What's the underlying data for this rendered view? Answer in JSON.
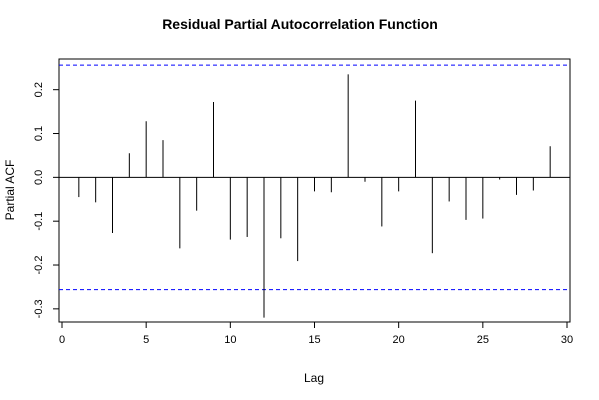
{
  "chart_data": {
    "type": "bar",
    "title": "Residual Partial Autocorrelation Function",
    "xlabel": "Lag",
    "ylabel": "Partial ACF",
    "xlim": [
      0,
      30
    ],
    "ylim": [
      -0.33,
      0.27
    ],
    "x_ticks": [
      0,
      5,
      10,
      15,
      20,
      25,
      30
    ],
    "y_ticks": [
      -0.3,
      -0.2,
      -0.1,
      0.0,
      0.1,
      0.2
    ],
    "x_tick_labels": [
      "0",
      "5",
      "10",
      "15",
      "20",
      "25",
      "30"
    ],
    "y_tick_labels": [
      "-0.3",
      "-0.2",
      "-0.1",
      "0.0",
      "0.1",
      "0.2"
    ],
    "confidence_bounds": [
      0.256,
      -0.256
    ],
    "bound_color": "#0000ff",
    "lags": [
      1,
      2,
      3,
      4,
      5,
      6,
      7,
      8,
      9,
      10,
      11,
      12,
      13,
      14,
      15,
      16,
      17,
      18,
      19,
      20,
      21,
      22,
      23,
      24,
      25,
      26,
      27,
      28,
      29
    ],
    "values": [
      -0.045,
      -0.057,
      -0.127,
      0.055,
      0.128,
      0.085,
      -0.162,
      -0.076,
      0.172,
      -0.142,
      -0.136,
      -0.32,
      -0.139,
      -0.191,
      -0.032,
      -0.034,
      0.235,
      -0.01,
      -0.112,
      -0.032,
      0.175,
      -0.173,
      -0.055,
      -0.097,
      -0.094,
      -0.005,
      -0.04,
      -0.03,
      0.071
    ]
  }
}
